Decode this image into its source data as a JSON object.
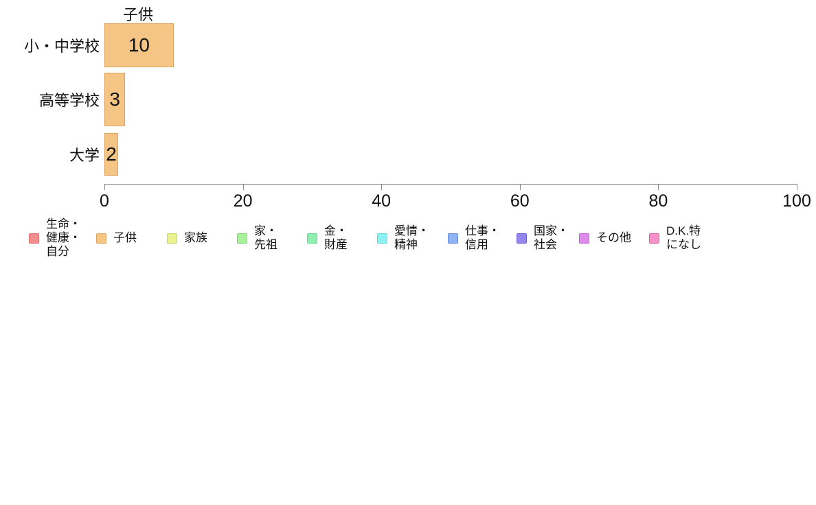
{
  "chart_data": {
    "type": "bar",
    "orientation": "horizontal",
    "title": "子供",
    "categories": [
      "小・中学校",
      "高等学校",
      "大学"
    ],
    "values": [
      10,
      3,
      2
    ],
    "value_labels": [
      "10",
      "3",
      "2"
    ],
    "xlim": [
      0,
      100
    ],
    "x_ticks": [
      0,
      20,
      40,
      60,
      80,
      100
    ],
    "grid": false,
    "bar_color": "#F5C585",
    "bar_border_color": "#DCA35F",
    "axis_color": "#888888",
    "legend_position": "bottom",
    "legend": [
      {
        "label": "生命・健康・自分",
        "lines": [
          "生命・",
          "健康・",
          "自分"
        ],
        "color": "#F28E8E",
        "border": "#DD6B6B"
      },
      {
        "label": "子供",
        "lines": [
          "子供"
        ],
        "color": "#F5C585",
        "border": "#DCA35F"
      },
      {
        "label": "家族",
        "lines": [
          "家族"
        ],
        "color": "#EAF292",
        "border": "#C8D75A"
      },
      {
        "label": "家・先祖",
        "lines": [
          "家・",
          "先祖"
        ],
        "color": "#A8F09A",
        "border": "#7BD96B"
      },
      {
        "label": "金・財産",
        "lines": [
          "金・",
          "財産"
        ],
        "color": "#8EEFB1",
        "border": "#5FD98A"
      },
      {
        "label": "愛情・精神",
        "lines": [
          "愛情・",
          "精神"
        ],
        "color": "#8FF2F2",
        "border": "#5CD9D9"
      },
      {
        "label": "仕事・信用",
        "lines": [
          "仕事・",
          "信用"
        ],
        "color": "#91B3F2",
        "border": "#6189DC"
      },
      {
        "label": "国家・社会",
        "lines": [
          "国家・",
          "社会"
        ],
        "color": "#9487EC",
        "border": "#6F5DD6"
      },
      {
        "label": "その他",
        "lines": [
          "その他"
        ],
        "color": "#DE8CEA",
        "border": "#C45FD6"
      },
      {
        "label": "D.K.特になし",
        "lines": [
          "D.K.特",
          "になし"
        ],
        "color": "#F391C8",
        "border": "#DC62A8"
      }
    ]
  }
}
